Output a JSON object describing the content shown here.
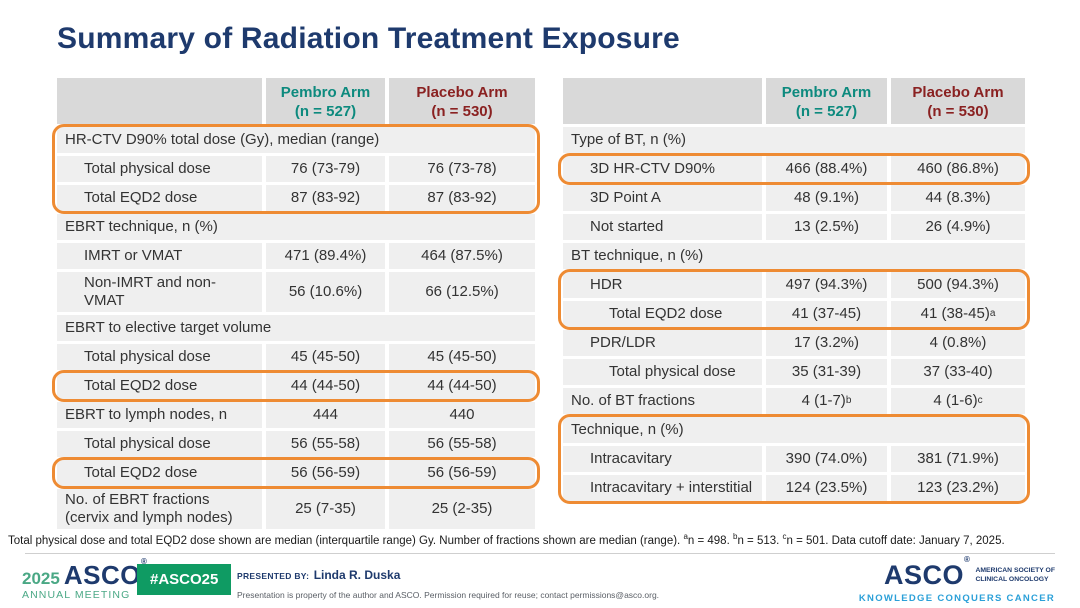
{
  "title": "Summary of Radiation Treatment Exposure",
  "colors": {
    "navy": "#1e3a6d",
    "teal": "#0d8a7e",
    "maroon": "#8a2121",
    "orange": "#ee8b33",
    "header_bg": "#d9d9d9",
    "row_bg": "#efefef",
    "badge_green": "#0f9b63",
    "meeting_green": "#4aa885",
    "tagline_blue": "#2ba0d8"
  },
  "tables": [
    {
      "name": "ebrt-table",
      "header": {
        "pembro": [
          "Pembro Arm",
          "(n = 527)"
        ],
        "placebo": [
          "Placebo Arm",
          "(n = 530)"
        ]
      },
      "rows": [
        {
          "label": "HR-CTV D90% total dose (Gy), median (range)",
          "section": true,
          "indent": 0,
          "box": "L1"
        },
        {
          "label": "Total physical dose",
          "indent": 1,
          "pembro": "76 (73-79)",
          "placebo": "76 (73-78)",
          "box": "L1"
        },
        {
          "label": "Total EQD2 dose",
          "indent": 1,
          "pembro": "87 (83-92)",
          "placebo": "87 (83-92)",
          "box": "L1"
        },
        {
          "label": "EBRT technique, n (%)",
          "section": true,
          "indent": 0
        },
        {
          "label": "IMRT or VMAT",
          "indent": 1,
          "pembro": "471 (89.4%)",
          "placebo": "464 (87.5%)"
        },
        {
          "label": "Non-IMRT and non-VMAT",
          "indent": 1,
          "pembro": "56 (10.6%)",
          "placebo": "66 (12.5%)"
        },
        {
          "label": "EBRT to elective target volume",
          "section": true,
          "indent": 0
        },
        {
          "label": "Total physical dose",
          "indent": 1,
          "pembro": "45 (45-50)",
          "placebo": "45 (45-50)"
        },
        {
          "label": "Total EQD2 dose",
          "indent": 1,
          "pembro": "44 (44-50)",
          "placebo": "44 (44-50)",
          "box": "L2"
        },
        {
          "label": "EBRT to lymph nodes, n",
          "indent": 0,
          "pembro": "444",
          "placebo": "440"
        },
        {
          "label": "Total physical dose",
          "indent": 1,
          "pembro": "56 (55-58)",
          "placebo": "56 (55-58)"
        },
        {
          "label": "Total EQD2 dose",
          "indent": 1,
          "pembro": "56 (56-59)",
          "placebo": "56 (56-59)",
          "box": "L3"
        },
        {
          "label": "No. of EBRT fractions (cervix and lymph nodes)",
          "indent": 0,
          "pembro": "25 (7-35)",
          "placebo": "25 (2-35)"
        }
      ]
    },
    {
      "name": "bt-table",
      "header": {
        "pembro": [
          "Pembro Arm",
          "(n = 527)"
        ],
        "placebo": [
          "Placebo Arm",
          "(n = 530)"
        ]
      },
      "rows": [
        {
          "label": "Type of BT, n (%)",
          "section": true,
          "indent": 0
        },
        {
          "label": "3D HR-CTV D90%",
          "indent": 1,
          "pembro": "466 (88.4%)",
          "placebo": "460 (86.8%)",
          "box": "R1"
        },
        {
          "label": "3D Point A",
          "indent": 1,
          "pembro": "48 (9.1%)",
          "placebo": "44 (8.3%)"
        },
        {
          "label": "Not started",
          "indent": 1,
          "pembro": "13 (2.5%)",
          "placebo": "26 (4.9%)"
        },
        {
          "label": "BT technique, n (%)",
          "section": true,
          "indent": 0
        },
        {
          "label": "HDR",
          "indent": 1,
          "pembro": "497 (94.3%)",
          "placebo": "500 (94.3%)",
          "box": "R2"
        },
        {
          "label": "Total EQD2 dose",
          "indent": 2,
          "pembro": "41 (37-45)",
          "placebo": "41 (38-45)",
          "placebo_sup": "a",
          "box": "R2"
        },
        {
          "label": "PDR/LDR",
          "indent": 1,
          "pembro": "17 (3.2%)",
          "placebo": "4 (0.8%)"
        },
        {
          "label": "Total physical dose",
          "indent": 2,
          "pembro": "35 (31-39)",
          "placebo": "37 (33-40)"
        },
        {
          "label": "No. of BT fractions",
          "indent": 0,
          "pembro": "4 (1-7)",
          "pembro_sup": "b",
          "placebo": "4 (1-6)",
          "placebo_sup": "c"
        },
        {
          "label": "Technique, n (%)",
          "section": true,
          "indent": 0,
          "box": "R3"
        },
        {
          "label": "Intracavitary",
          "indent": 1,
          "pembro": "390 (74.0%)",
          "placebo": "381 (71.9%)",
          "box": "R3"
        },
        {
          "label": "Intracavitary + interstitial",
          "indent": 1,
          "pembro": "124 (23.5%)",
          "placebo": "123 (23.2%)",
          "box": "R3"
        }
      ]
    }
  ],
  "footnote_parts": [
    {
      "t": "Total physical dose and total EQD2 dose shown are median (interquartile range) Gy. Number of fractions shown are median (range). "
    },
    {
      "s": "a"
    },
    {
      "t": "n = 498. "
    },
    {
      "s": "b"
    },
    {
      "t": "n = 513. "
    },
    {
      "s": "c"
    },
    {
      "t": "n = 501. Data cutoff date: January 7, 2025."
    }
  ],
  "footer": {
    "meeting_year": "2025",
    "meeting_org": "ASCO",
    "meeting_reg": "®",
    "meeting_name": "ANNUAL MEETING",
    "hashtag": "#ASCO25",
    "presented_by_label": "PRESENTED BY:",
    "presenter": "Linda R. Duska",
    "permission_note": "Presentation is property of the author and ASCO. Permission required for reuse; contact permissions@asco.org.",
    "asco_logo_word": "ASCO",
    "asco_logo_reg": "®",
    "asco_society_line1": "AMERICAN SOCIETY OF",
    "asco_society_line2": "CLINICAL ONCOLOGY",
    "tagline": "KNOWLEDGE CONQUERS CANCER"
  }
}
